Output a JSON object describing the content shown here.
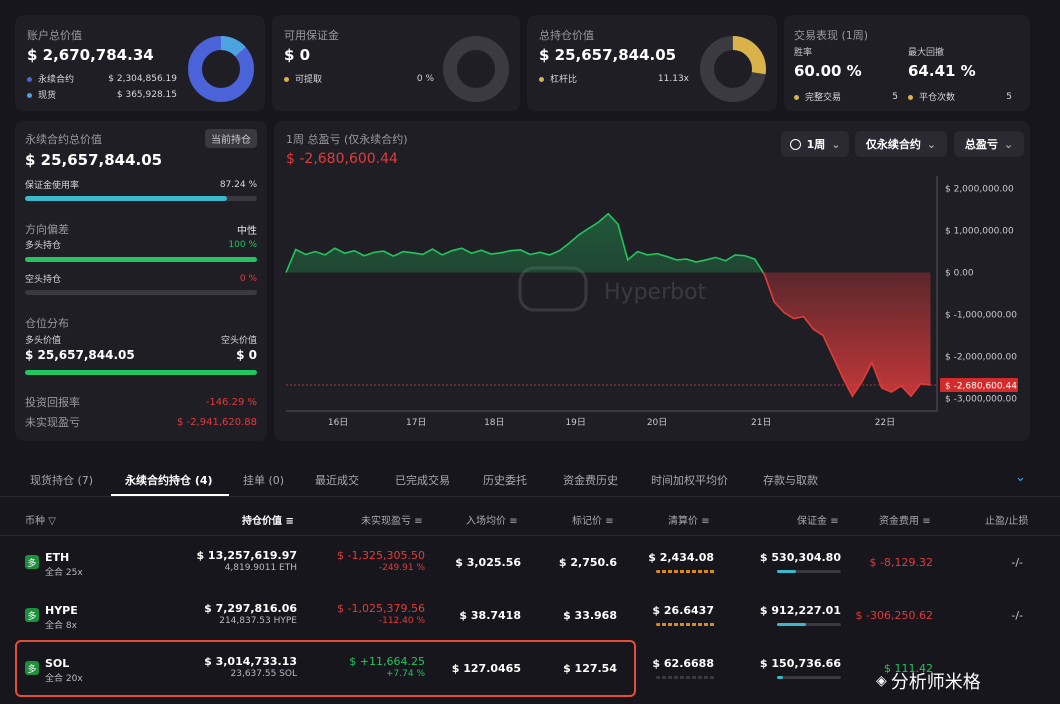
{
  "cards": {
    "account": {
      "title": "账户总价值",
      "value": "$ 2,670,784.34",
      "items": [
        {
          "label": "永续合约",
          "value": "$ 2,304,856.19",
          "color": "#4a63d8"
        },
        {
          "label": "现货",
          "value": "$ 365,928.15",
          "color": "#4ba3e0"
        }
      ]
    },
    "margin": {
      "title": "可用保证金",
      "value": "$ 0",
      "items": [
        {
          "label": "可提取",
          "value": "0 %",
          "color": "#d9b24c"
        }
      ]
    },
    "holding": {
      "title": "总持仓价值",
      "value": "$ 25,657,844.05",
      "items": [
        {
          "label": "杠杆比",
          "value": "11.13x",
          "color": "#d9b24c"
        }
      ]
    },
    "performance": {
      "title": "交易表现 (1周)",
      "win_label": "胜率",
      "win_value": "60.00 %",
      "dd_label": "最大回撤",
      "dd_value": "64.41 %",
      "items": [
        {
          "label": "完整交易",
          "value": "5",
          "color": "#d9b24c"
        },
        {
          "label": "平仓次数",
          "value": "5",
          "color": "#d9b24c"
        }
      ]
    }
  },
  "left_panel": {
    "title": "永续合约总价值",
    "badge": "当前持仓",
    "value": "$ 25,657,844.05",
    "margin_use_label": "保证金使用率",
    "margin_use_value": "87.24 %",
    "margin_use_fraction": 0.8724,
    "direction_label": "方向偏差",
    "direction_value": "中性",
    "long_label": "多头持仓",
    "long_value": "100 %",
    "long_fraction": 1.0,
    "short_label": "空头持仓",
    "short_value": "0 %",
    "short_fraction": 0,
    "dist_label": "仓位分布",
    "long_val_label": "多头价值",
    "long_val": "$ 25,657,844.05",
    "short_val_label": "空头价值",
    "short_val": "$ 0",
    "roi_label": "投资回报率",
    "roi_value": "-146.29 %",
    "upnl_label": "未实现盈亏",
    "upnl_value": "$ -2,941,620.88"
  },
  "chart_panel": {
    "title": "1周 总盈亏 (仅永续合约)",
    "value": "$ -2,680,600.44",
    "btn_period": "1周",
    "btn_type": "仅永续合约",
    "btn_metric": "总盈亏",
    "watermark": "Hyperbot",
    "current_label": "$ -2,680,600.44"
  },
  "chart_data": {
    "type": "area",
    "x_ticks": [
      "16日",
      "17日",
      "18日",
      "19日",
      "20日",
      "21日",
      "22日"
    ],
    "y_ticks": [
      "$ 2,000,000.00",
      "$ 1,000,000.00",
      "$ 0.00",
      "$ -1,000,000.00",
      "$ -2,000,000.00",
      "$ -3,000,000.00"
    ],
    "y_tick_values": [
      2000000,
      1000000,
      0,
      -1000000,
      -2000000,
      -3000000
    ],
    "ylim": [
      -3300000,
      2300000
    ],
    "x_range": [
      0,
      100
    ],
    "x_tick_positions": [
      8,
      20,
      32,
      44.5,
      57,
      73,
      92
    ],
    "current_value": -2680600.44,
    "series": [
      {
        "x": [
          0,
          1.5,
          3,
          4.5,
          6,
          7.5,
          9,
          10.5,
          12,
          13.5,
          15,
          16.5,
          18,
          19.5,
          21,
          22.5,
          24,
          25.5,
          27,
          28.5,
          30,
          31.5,
          33,
          34.5,
          36,
          37.5,
          39,
          40.5,
          42,
          43.5,
          45,
          46.5,
          48,
          49.5,
          51,
          52.5,
          54,
          55.5,
          57,
          58.5,
          60,
          61.5,
          63,
          64.5,
          66,
          67.5,
          69,
          70.5,
          72,
          73.5,
          75,
          76.5,
          78,
          79.5,
          81,
          82.5,
          84,
          85.5,
          87,
          88.5,
          90,
          91.5,
          93,
          94.5,
          96,
          97.5,
          99
        ],
        "values": [
          0,
          550000,
          430000,
          500000,
          420000,
          580000,
          460000,
          520000,
          400000,
          480000,
          510000,
          390000,
          500000,
          470000,
          430000,
          560000,
          420000,
          520000,
          580000,
          460000,
          530000,
          440000,
          470000,
          520000,
          540000,
          430000,
          480000,
          420000,
          520000,
          700000,
          900000,
          1050000,
          1200000,
          1400000,
          1150000,
          300000,
          500000,
          420000,
          450000,
          380000,
          300000,
          320000,
          250000,
          300000,
          360000,
          280000,
          420000,
          400000,
          320000,
          -50000,
          -700000,
          -950000,
          -1100000,
          -1050000,
          -1350000,
          -1500000,
          -2000000,
          -2500000,
          -2950000,
          -2600000,
          -2150000,
          -2750000,
          -2850000,
          -2700000,
          -2950000,
          -2650000,
          -2680000
        ]
      }
    ]
  },
  "tabs": [
    {
      "label": "现货持仓 (7)",
      "active": false
    },
    {
      "label": "永续合约持仓 (4)",
      "active": true
    },
    {
      "label": "挂单 (0)",
      "active": false
    },
    {
      "label": "最近成交",
      "active": false
    },
    {
      "label": "已完成交易",
      "active": false
    },
    {
      "label": "历史委托",
      "active": false
    },
    {
      "label": "资金费历史",
      "active": false
    },
    {
      "label": "时间加权平均价",
      "active": false
    },
    {
      "label": "存款与取款",
      "active": false
    }
  ],
  "table": {
    "headers": [
      "币种",
      "持仓价值",
      "未实现盈亏",
      "入场均价",
      "标记价",
      "清算价",
      "保证金",
      "资金费用",
      "止盈/止损"
    ],
    "rows": [
      {
        "coin": "ETH",
        "badge": "多",
        "sub": "全合 25x",
        "value": "$ 13,257,619.97",
        "size": "4,819.9011 ETH",
        "upnl": "$ -1,325,305.50",
        "upnl_pct": "-249.91 %",
        "upnl_pos": false,
        "entry": "$ 3,025.56",
        "mark": "$ 2,750.6",
        "liq": "$ 2,434.08",
        "liq_color": "#d98a1c",
        "margin": "$ 530,304.80",
        "margin_fill": 0.3,
        "funding": "$ -8,129.32",
        "funding_pos": false,
        "tpsl": "-/-"
      },
      {
        "coin": "HYPE",
        "badge": "多",
        "sub": "全合 8x",
        "value": "$ 7,297,816.06",
        "size": "214,837.53 HYPE",
        "upnl": "$ -1,025,379.56",
        "upnl_pct": "-112.40 %",
        "upnl_pos": false,
        "entry": "$ 38.7418",
        "mark": "$ 33.968",
        "liq": "$ 26.6437",
        "liq_color": "#d98a1c",
        "margin": "$ 912,227.01",
        "margin_fill": 0.45,
        "funding": "$ -306,250.62",
        "funding_pos": false,
        "tpsl": "-/-"
      },
      {
        "coin": "SOL",
        "badge": "多",
        "sub": "全合 20x",
        "value": "$ 3,014,733.13",
        "size": "23,637.55 SOL",
        "upnl": "$ +11,664.25",
        "upnl_pct": "+7.74 %",
        "upnl_pos": true,
        "entry": "$ 127.0465",
        "mark": "$ 127.54",
        "liq": "$ 62.6688",
        "liq_color": "#3a3940",
        "margin": "$ 150,736.66",
        "margin_fill": 0.1,
        "funding": "$ 111.42",
        "funding_pos": true,
        "tpsl": ""
      }
    ]
  },
  "watermark_footer": "分析师米格"
}
